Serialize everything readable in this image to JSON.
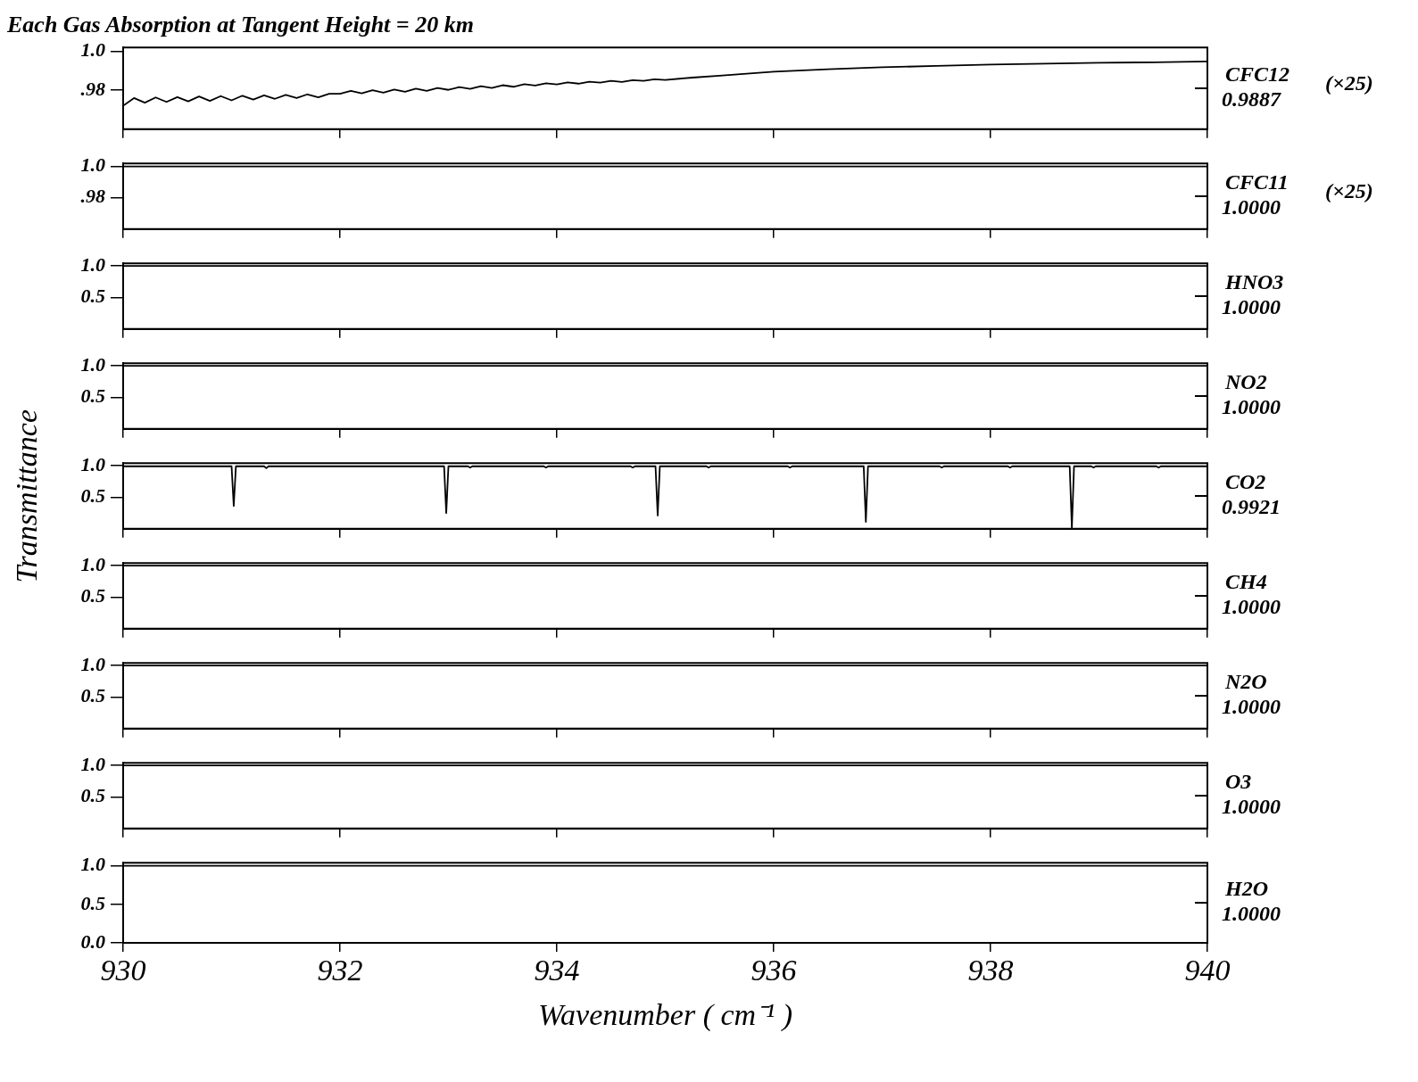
{
  "chart_data": [
    {
      "type": "line",
      "title": "Each Gas Absorption at Tangent Height = 20 km",
      "xlim": [
        930,
        940
      ],
      "xticks": [
        930,
        932,
        934,
        936,
        938,
        940
      ],
      "ylim": [
        0.96,
        1.002
      ],
      "yticks": [
        {
          "value": 1.0,
          "label": "1.0"
        },
        {
          "value": 0.98,
          "label": ".98"
        }
      ],
      "tick_labels": "y",
      "annotations": [
        "0.9887",
        "(×25)"
      ],
      "series": [
        {
          "name": "CFC12",
          "color": "#000000",
          "x": [
            930.0,
            930.1,
            930.2,
            930.3,
            930.4,
            930.5,
            930.6,
            930.7,
            930.8,
            930.9,
            931.0,
            931.1,
            931.2,
            931.3,
            931.4,
            931.5,
            931.6,
            931.7,
            931.8,
            931.9,
            932.0,
            932.1,
            932.2,
            932.3,
            932.4,
            932.5,
            932.6,
            932.7,
            932.8,
            932.9,
            933.0,
            933.1,
            933.2,
            933.3,
            933.4,
            933.5,
            933.6,
            933.7,
            933.8,
            933.9,
            934.0,
            934.1,
            934.2,
            934.3,
            934.4,
            934.5,
            934.6,
            934.7,
            934.8,
            934.9,
            935.0,
            935.25,
            935.5,
            935.75,
            936,
            936.5,
            937,
            937.5,
            938,
            938.5,
            939,
            939.5,
            940
          ],
          "values": [
            0.972,
            0.976,
            0.9736,
            0.9763,
            0.974,
            0.9765,
            0.9743,
            0.9768,
            0.9745,
            0.977,
            0.9748,
            0.9772,
            0.9752,
            0.9774,
            0.9756,
            0.9776,
            0.976,
            0.9779,
            0.9764,
            0.9782,
            0.9782,
            0.9797,
            0.9784,
            0.98,
            0.9788,
            0.9804,
            0.9792,
            0.9808,
            0.9797,
            0.9812,
            0.9802,
            0.9816,
            0.9807,
            0.9821,
            0.9812,
            0.9826,
            0.9818,
            0.9831,
            0.9824,
            0.9836,
            0.983,
            0.984,
            0.9834,
            0.9844,
            0.9839,
            0.9848,
            0.9843,
            0.9852,
            0.9848,
            0.9856,
            0.9853,
            0.9865,
            0.9875,
            0.9885,
            0.9895,
            0.9908,
            0.9918,
            0.9925,
            0.9932,
            0.9937,
            0.9941,
            0.9944,
            0.9948
          ]
        }
      ]
    },
    {
      "type": "line",
      "xlim": [
        930,
        940
      ],
      "xticks": [
        930,
        932,
        934,
        936,
        938,
        940
      ],
      "ylim": [
        0.96,
        1.002
      ],
      "yticks": [
        {
          "value": 1.0,
          "label": "1.0"
        },
        {
          "value": 0.98,
          "label": ".98"
        }
      ],
      "tick_labels": "y",
      "annotations": [
        "1.0000",
        "(×25)"
      ],
      "series": [
        {
          "name": "CFC11",
          "color": "#000000",
          "x": [
            930,
            940
          ],
          "values": [
            1,
            1
          ]
        }
      ]
    },
    {
      "type": "line",
      "xlim": [
        930,
        940
      ],
      "xticks": [
        930,
        932,
        934,
        936,
        938,
        940
      ],
      "ylim": [
        0,
        1.04
      ],
      "yticks": [
        {
          "value": 1.0,
          "label": "1.0"
        },
        {
          "value": 0.5,
          "label": "0.5"
        }
      ],
      "tick_labels": "y",
      "annotations": [
        "1.0000"
      ],
      "series": [
        {
          "name": "HNO3",
          "color": "#000000",
          "x": [
            930,
            940
          ],
          "values": [
            1,
            1
          ]
        }
      ]
    },
    {
      "type": "line",
      "xlim": [
        930,
        940
      ],
      "xticks": [
        930,
        932,
        934,
        936,
        938,
        940
      ],
      "ylim": [
        0,
        1.04
      ],
      "yticks": [
        {
          "value": 1.0,
          "label": "1.0"
        },
        {
          "value": 0.5,
          "label": "0.5"
        }
      ],
      "tick_labels": "y",
      "annotations": [
        "1.0000"
      ],
      "series": [
        {
          "name": "NO2",
          "color": "#000000",
          "x": [
            930,
            940
          ],
          "values": [
            1,
            1
          ]
        }
      ]
    },
    {
      "type": "line",
      "ylabel": "Transmittance",
      "xlim": [
        930,
        940
      ],
      "xticks": [
        930,
        932,
        934,
        936,
        938,
        940
      ],
      "ylim": [
        0,
        1.04
      ],
      "yticks": [
        {
          "value": 1.0,
          "label": "1.0"
        },
        {
          "value": 0.5,
          "label": "0.5"
        }
      ],
      "tick_labels": "y",
      "annotations": [
        "0.9921"
      ],
      "series": [
        {
          "name": "CO2",
          "color": "#000000",
          "x": [
            930,
            931.0,
            931.02,
            931.04,
            931.3,
            931.32,
            931.34,
            932.96,
            932.98,
            933.0,
            933.18,
            933.2,
            933.22,
            933.88,
            933.9,
            933.92,
            934.68,
            934.7,
            934.72,
            934.91,
            934.93,
            934.95,
            935.38,
            935.4,
            935.42,
            936.13,
            936.15,
            936.17,
            936.83,
            936.85,
            936.87,
            937.53,
            937.55,
            937.57,
            938.16,
            938.18,
            938.2,
            938.73,
            938.75,
            938.77,
            938.93,
            938.95,
            938.97,
            939.53,
            939.55,
            939.57,
            940
          ],
          "values": [
            0.99,
            0.99,
            0.36,
            0.99,
            0.99,
            0.96,
            0.99,
            0.99,
            0.25,
            0.99,
            0.99,
            0.97,
            0.99,
            0.99,
            0.97,
            0.99,
            0.99,
            0.97,
            0.99,
            0.99,
            0.21,
            0.99,
            0.99,
            0.97,
            0.99,
            0.99,
            0.97,
            0.99,
            0.99,
            0.11,
            0.99,
            0.99,
            0.97,
            0.99,
            0.99,
            0.97,
            0.99,
            0.99,
            0.01,
            0.99,
            0.99,
            0.97,
            0.99,
            0.99,
            0.97,
            0.99,
            0.99
          ]
        }
      ]
    },
    {
      "type": "line",
      "xlim": [
        930,
        940
      ],
      "xticks": [
        930,
        932,
        934,
        936,
        938,
        940
      ],
      "ylim": [
        0,
        1.04
      ],
      "yticks": [
        {
          "value": 1.0,
          "label": "1.0"
        },
        {
          "value": 0.5,
          "label": "0.5"
        }
      ],
      "tick_labels": "y",
      "annotations": [
        "1.0000"
      ],
      "series": [
        {
          "name": "CH4",
          "color": "#000000",
          "x": [
            930,
            940
          ],
          "values": [
            1,
            1
          ]
        }
      ]
    },
    {
      "type": "line",
      "xlim": [
        930,
        940
      ],
      "xticks": [
        930,
        932,
        934,
        936,
        938,
        940
      ],
      "ylim": [
        0,
        1.04
      ],
      "yticks": [
        {
          "value": 1.0,
          "label": "1.0"
        },
        {
          "value": 0.5,
          "label": "0.5"
        }
      ],
      "tick_labels": "y",
      "annotations": [
        "1.0000"
      ],
      "series": [
        {
          "name": "N2O",
          "color": "#000000",
          "x": [
            930,
            940
          ],
          "values": [
            1,
            1
          ]
        }
      ]
    },
    {
      "type": "line",
      "xlim": [
        930,
        940
      ],
      "xticks": [
        930,
        932,
        934,
        936,
        938,
        940
      ],
      "ylim": [
        0,
        1.04
      ],
      "yticks": [
        {
          "value": 1.0,
          "label": "1.0"
        },
        {
          "value": 0.5,
          "label": "0.5"
        }
      ],
      "tick_labels": "y",
      "annotations": [
        "1.0000"
      ],
      "series": [
        {
          "name": "O3",
          "color": "#000000",
          "x": [
            930,
            940
          ],
          "values": [
            1,
            1
          ]
        }
      ]
    },
    {
      "type": "line",
      "xlabel": "Wavenumber ( cm⁻¹ )",
      "xlim": [
        930,
        940
      ],
      "xticks": [
        930,
        932,
        934,
        936,
        938,
        940
      ],
      "ylim": [
        0,
        1.04
      ],
      "yticks": [
        {
          "value": 1.0,
          "label": "1.0"
        },
        {
          "value": 0.5,
          "label": "0.5"
        },
        {
          "value": 0,
          "label": "0.0"
        }
      ],
      "annotations": [
        "1.0000"
      ],
      "series": [
        {
          "name": "H2O",
          "color": "#000000",
          "x": [
            930,
            940
          ],
          "values": [
            1,
            1
          ]
        }
      ]
    }
  ]
}
